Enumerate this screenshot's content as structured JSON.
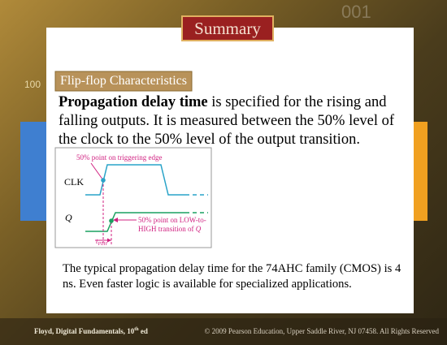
{
  "background": {
    "decor_left": "100",
    "decor_top": "001"
  },
  "header": {
    "title": "Summary"
  },
  "section": {
    "heading": "Flip-flop Characteristics",
    "body": {
      "bold": "Propagation delay time",
      "text": " is specified for the rising and falling outputs. It is measured between the 50% level of the clock to the 50% level of the output transition."
    }
  },
  "diagram": {
    "clk_note": "50% point on triggering edge",
    "clk_label": "CLK",
    "q_label": "Q",
    "q_note": [
      "50% point on LOW-to-",
      "HIGH transition of ",
      "Q"
    ],
    "delay": {
      "symbol": "t",
      "subscript": "PLH"
    }
  },
  "note": "The typical propagation delay time for the 74AHC family (CMOS) is 4 ns. Even faster logic is available for specialized applications.",
  "footer": {
    "left": [
      "Floyd, Digital Fundamentals, 10",
      "th",
      " ed"
    ],
    "right": "© 2009 Pearson Education, Upper Saddle River, NJ 07458. All Rights Reserved"
  }
}
